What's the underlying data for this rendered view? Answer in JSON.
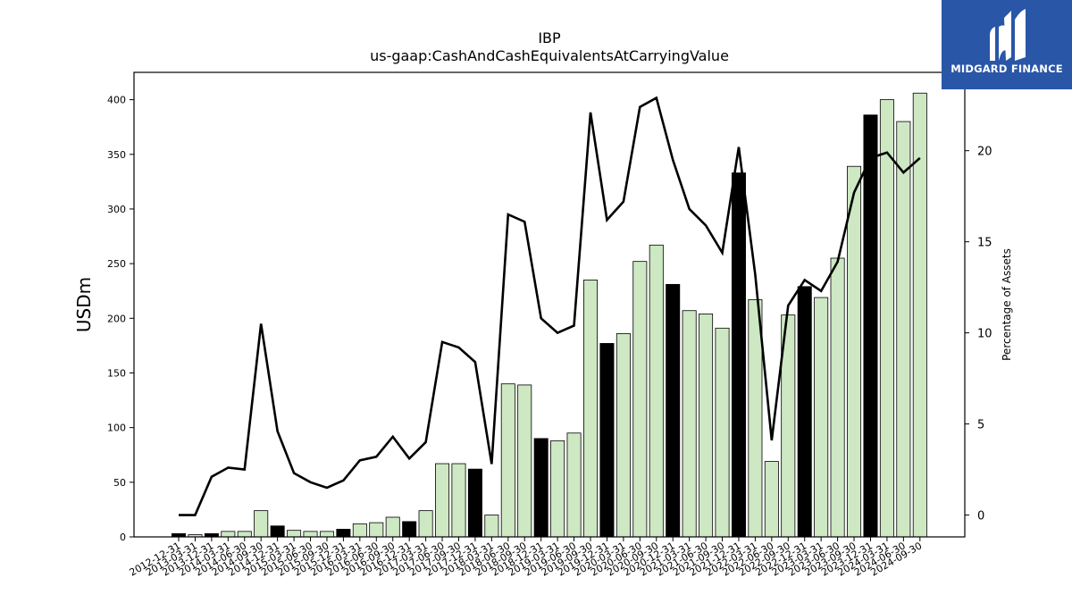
{
  "chart_data": {
    "type": "bar",
    "title": "IBP",
    "subtitle": "us-gaap:CashAndCashEquivalentsAtCarryingValue",
    "ylabel": "USDm",
    "ylabel_right": "Percentage of Assets",
    "ylim": [
      0,
      425
    ],
    "ylim_right": [
      -1.2,
      24.3
    ],
    "yticks": [
      0,
      50,
      100,
      150,
      200,
      250,
      300,
      350,
      400
    ],
    "yticks_right": [
      0,
      5,
      10,
      15,
      20
    ],
    "categories": [
      "2012-12-31",
      "2013-03-31",
      "2013-12-31",
      "2014-03-31",
      "2014-06-30",
      "2014-09-30",
      "2014-12-31",
      "2015-03-31",
      "2015-06-30",
      "2015-09-30",
      "2015-12-31",
      "2016-03-31",
      "2016-06-30",
      "2016-09-30",
      "2016-12-31",
      "2017-03-31",
      "2017-06-30",
      "2017-09-30",
      "2017-12-31",
      "2018-03-31",
      "2018-06-30",
      "2018-09-30",
      "2018-12-31",
      "2019-03-31",
      "2019-06-30",
      "2019-09-30",
      "2019-12-31",
      "2020-03-31",
      "2020-06-30",
      "2020-09-30",
      "2020-12-31",
      "2021-03-31",
      "2021-06-30",
      "2021-09-30",
      "2021-12-31",
      "2022-03-31",
      "2022-06-30",
      "2022-09-30",
      "2022-12-31",
      "2023-03-31",
      "2023-06-30",
      "2023-09-30",
      "2023-12-31",
      "2024-03-31",
      "2024-06-30",
      "2024-09-30"
    ],
    "series": [
      {
        "kind": "bar",
        "values": [
          3,
          2,
          3,
          5,
          5,
          24,
          10,
          6,
          5,
          5,
          7,
          12,
          13,
          18,
          14,
          24,
          67,
          67,
          62,
          20,
          140,
          139,
          90,
          88,
          95,
          235,
          177,
          186,
          252,
          267,
          231,
          207,
          204,
          191,
          333,
          217,
          69,
          203,
          229,
          219,
          255,
          339,
          386,
          400,
          380,
          406
        ],
        "year_end": [
          true,
          false,
          true,
          false,
          false,
          false,
          true,
          false,
          false,
          false,
          true,
          false,
          false,
          false,
          true,
          false,
          false,
          false,
          true,
          false,
          false,
          false,
          true,
          false,
          false,
          false,
          true,
          false,
          false,
          false,
          true,
          false,
          false,
          false,
          true,
          false,
          false,
          false,
          true,
          false,
          false,
          false,
          true,
          false,
          false,
          false
        ],
        "color": "#cde8c3",
        "year_end_color": "#000000"
      },
      {
        "kind": "line",
        "axis": "right",
        "values": [
          0.0,
          0.0,
          2.1,
          2.6,
          2.5,
          10.5,
          4.6,
          2.3,
          1.8,
          1.5,
          1.9,
          3.0,
          3.2,
          4.3,
          3.1,
          4.0,
          9.5,
          9.2,
          8.4,
          2.8,
          16.5,
          16.1,
          10.8,
          10.0,
          10.4,
          22.1,
          16.2,
          17.2,
          22.4,
          22.9,
          19.5,
          16.8,
          15.9,
          14.4,
          20.2,
          13.2,
          4.1,
          11.5,
          12.9,
          12.3,
          13.9,
          17.7,
          19.6,
          19.9,
          18.8,
          19.6
        ],
        "color": "#000000"
      }
    ],
    "grid": false
  },
  "logo": {
    "text": "MIDGARD FINANCE",
    "background": "#2a56a8",
    "icon": "midgard-logo-icon"
  }
}
